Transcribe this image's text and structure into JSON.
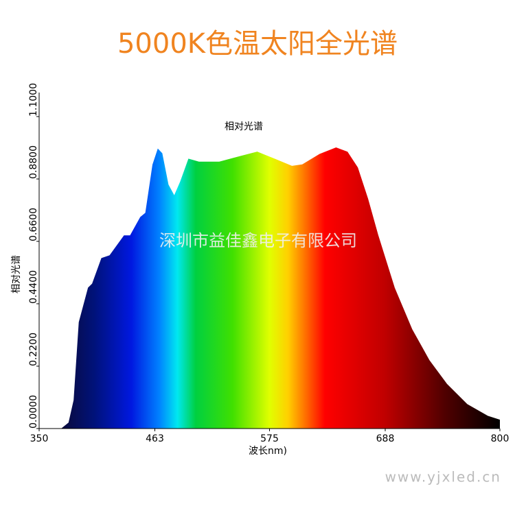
{
  "chart_data": {
    "type": "area",
    "title": "5000K色温太阳全光谱",
    "subtitle": "相对光谱",
    "xlabel": "波长nm)",
    "ylabel": "相对光谱",
    "annotation": "深圳市益佳鑫电子有限公司",
    "x": [
      372,
      379,
      384,
      389,
      398,
      402,
      411,
      419,
      433,
      439,
      449,
      454,
      461,
      466,
      470,
      476,
      482,
      488,
      496,
      506,
      526,
      547,
      563,
      580,
      597,
      607,
      624,
      640,
      651,
      661,
      671,
      681,
      697,
      714,
      731,
      748,
      768,
      788,
      800
    ],
    "values": [
      0,
      0.02,
      0.1,
      0.375,
      0.496,
      0.51,
      0.6,
      0.61,
      0.68,
      0.68,
      0.745,
      0.76,
      0.93,
      0.985,
      0.97,
      0.86,
      0.82,
      0.87,
      0.95,
      0.94,
      0.94,
      0.96,
      0.975,
      0.95,
      0.925,
      0.93,
      0.967,
      0.99,
      0.975,
      0.92,
      0.81,
      0.68,
      0.496,
      0.35,
      0.24,
      0.157,
      0.085,
      0.044,
      0.03
    ],
    "xlim": [
      350,
      800
    ],
    "xticks": [
      350,
      463,
      575,
      688,
      800
    ],
    "ylim": [
      0,
      1.1
    ],
    "yticks": [
      {
        "value": 0,
        "label": "0.0000"
      },
      {
        "value": 0.22,
        "label": "0.2200"
      },
      {
        "value": 0.44,
        "label": "0.4400"
      },
      {
        "value": 0.66,
        "label": "0.6600"
      },
      {
        "value": 0.88,
        "label": "0.8800"
      },
      {
        "value": 1.1,
        "label": "1.1000"
      }
    ],
    "grid": false
  },
  "footer": "www.yjxled.cn"
}
